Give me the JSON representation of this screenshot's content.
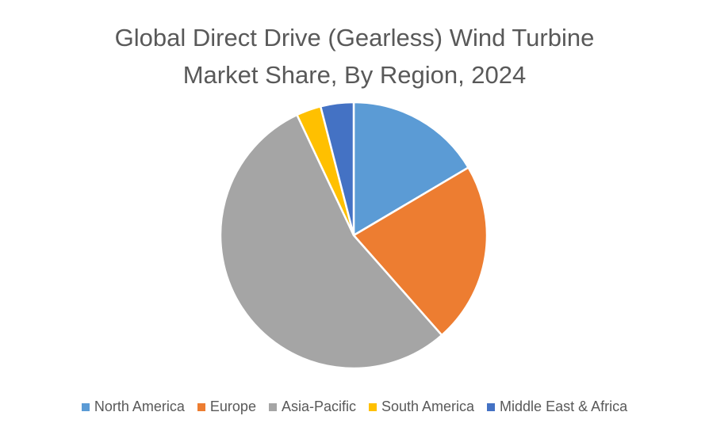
{
  "chart_data": {
    "type": "pie",
    "title_lines": [
      "Global Direct Drive (Gearless) Wind Turbine",
      "Market Share, By Region, 2024"
    ],
    "series": [
      {
        "name": "North America",
        "value": 16.5,
        "color": "#5B9BD5"
      },
      {
        "name": "Europe",
        "value": 22.0,
        "color": "#ED7D31"
      },
      {
        "name": "Asia-Pacific",
        "value": 54.5,
        "color": "#A5A5A5"
      },
      {
        "name": "South America",
        "value": 3.0,
        "color": "#FFC000"
      },
      {
        "name": "Middle East & Africa",
        "value": 4.0,
        "color": "#4472C4"
      }
    ],
    "legend_position": "bottom"
  }
}
